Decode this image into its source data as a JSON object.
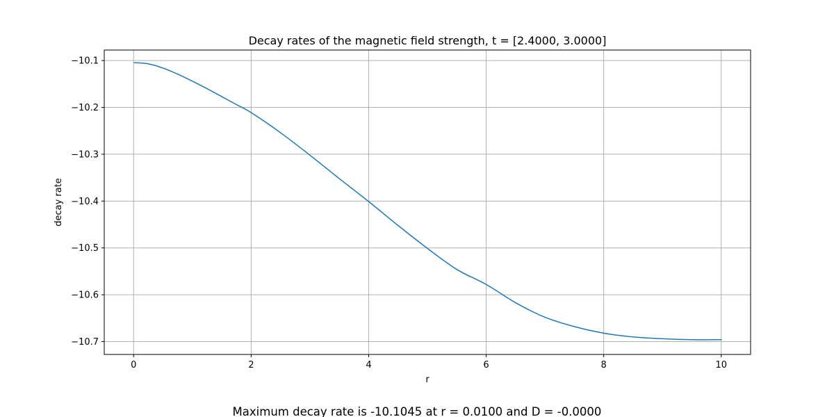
{
  "chart_data": {
    "type": "line",
    "title": "Decay rates of the magnetic field strength, t = [2.4000, 3.0000]",
    "xlabel": "r",
    "ylabel": "decay rate",
    "xlim": [
      -0.5,
      10.5
    ],
    "ylim": [
      -10.7275,
      -10.0775
    ],
    "xticks": [
      0,
      2,
      4,
      6,
      8,
      10
    ],
    "xtick_labels": [
      "0",
      "2",
      "4",
      "6",
      "8",
      "10"
    ],
    "yticks": [
      -10.1,
      -10.2,
      -10.3,
      -10.4,
      -10.5,
      -10.6,
      -10.7
    ],
    "ytick_labels": [
      "−10.1",
      "−10.2",
      "−10.3",
      "−10.4",
      "−10.5",
      "−10.6",
      "−10.7"
    ],
    "grid": true,
    "line_color": "#1f77b4",
    "series": [
      {
        "x": [
          0.01,
          0.25,
          0.5,
          0.75,
          1.0,
          1.25,
          1.5,
          1.75,
          2.0,
          2.5,
          3.0,
          3.5,
          4.0,
          4.5,
          5.0,
          5.5,
          6.0,
          6.5,
          7.0,
          7.5,
          8.0,
          8.5,
          9.0,
          9.5,
          10.0
        ],
        "y": [
          -10.1045,
          -10.107,
          -10.116,
          -10.129,
          -10.144,
          -10.16,
          -10.177,
          -10.194,
          -10.211,
          -10.254,
          -10.302,
          -10.352,
          -10.401,
          -10.452,
          -10.501,
          -10.546,
          -10.578,
          -10.617,
          -10.648,
          -10.668,
          -10.682,
          -10.69,
          -10.694,
          -10.696,
          -10.696
        ]
      }
    ]
  },
  "caption": "Maximum decay rate is -10.1045 at r = 0.0100 and D = -0.0000"
}
